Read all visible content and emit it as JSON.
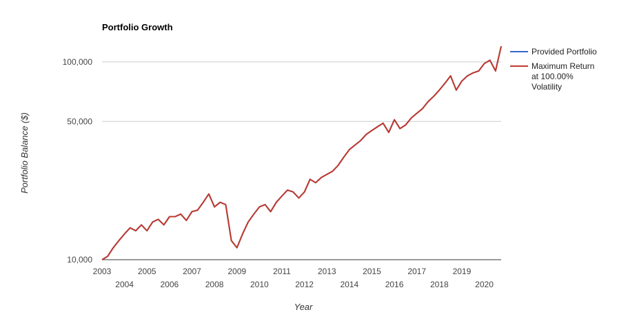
{
  "chart_data": {
    "type": "line",
    "title": "Portfolio Growth",
    "xlabel": "Year",
    "ylabel": "Portfolio Balance ($)",
    "yscale": "log",
    "ylim": [
      10000,
      125000
    ],
    "xlim": [
      2003.0,
      2020.75
    ],
    "y_ticks": [
      {
        "value": 10000,
        "label": "10,000"
      },
      {
        "value": 50000,
        "label": "50,000"
      },
      {
        "value": 100000,
        "label": "100,000"
      }
    ],
    "x_ticks": [
      {
        "value": 2003,
        "label": "2003"
      },
      {
        "value": 2004,
        "label": "2004"
      },
      {
        "value": 2005,
        "label": "2005"
      },
      {
        "value": 2006,
        "label": "2006"
      },
      {
        "value": 2007,
        "label": "2007"
      },
      {
        "value": 2008,
        "label": "2008"
      },
      {
        "value": 2009,
        "label": "2009"
      },
      {
        "value": 2010,
        "label": "2010"
      },
      {
        "value": 2011,
        "label": "2011"
      },
      {
        "value": 2012,
        "label": "2012"
      },
      {
        "value": 2013,
        "label": "2013"
      },
      {
        "value": 2014,
        "label": "2014"
      },
      {
        "value": 2015,
        "label": "2015"
      },
      {
        "value": 2016,
        "label": "2016"
      },
      {
        "value": 2017,
        "label": "2017"
      },
      {
        "value": 2018,
        "label": "2018"
      },
      {
        "value": 2019,
        "label": "2019"
      },
      {
        "value": 2020,
        "label": "2020"
      }
    ],
    "legend": {
      "position": "right",
      "entries": [
        {
          "name": "Provided Portfolio",
          "color": "#3366cc"
        },
        {
          "name": "Maximum Return at 100.00% Volatility",
          "lines": [
            "Maximum Return",
            "at 100.00%",
            "Volatility"
          ],
          "color": "#c0392b"
        }
      ]
    },
    "series": [
      {
        "name": "Provided Portfolio",
        "color": "#3366cc",
        "x": [
          2003.0,
          2003.25,
          2003.5,
          2003.75,
          2004.0,
          2004.25,
          2004.5,
          2004.75,
          2005.0,
          2005.25,
          2005.5,
          2005.75,
          2006.0,
          2006.25,
          2006.5,
          2006.75,
          2007.0,
          2007.25,
          2007.5,
          2007.75,
          2008.0,
          2008.25,
          2008.5,
          2008.75,
          2009.0,
          2009.25,
          2009.5,
          2009.75,
          2010.0,
          2010.25,
          2010.5,
          2010.75,
          2011.0,
          2011.25,
          2011.5,
          2011.75,
          2012.0,
          2012.25,
          2012.5,
          2012.75,
          2013.0,
          2013.25,
          2013.5,
          2013.75,
          2014.0,
          2014.25,
          2014.5,
          2014.75,
          2015.0,
          2015.25,
          2015.5,
          2015.75,
          2016.0,
          2016.25,
          2016.5,
          2016.75,
          2017.0,
          2017.25,
          2017.5,
          2017.75,
          2018.0,
          2018.25,
          2018.5,
          2018.75,
          2019.0,
          2019.25,
          2019.5,
          2019.75,
          2020.0,
          2020.25,
          2020.5,
          2020.75
        ],
        "values": [
          10000,
          10400,
          11500,
          12500,
          13500,
          14500,
          14000,
          15000,
          14000,
          15500,
          16000,
          15000,
          16500,
          16500,
          17000,
          15800,
          17500,
          17800,
          19500,
          21500,
          18500,
          19500,
          19000,
          12500,
          11500,
          13500,
          15500,
          17000,
          18500,
          19000,
          17500,
          19500,
          21000,
          22500,
          22000,
          20500,
          22000,
          25500,
          24500,
          26000,
          27000,
          28000,
          30000,
          33000,
          36000,
          38000,
          40000,
          43000,
          45000,
          47000,
          49000,
          44000,
          51000,
          46000,
          48000,
          52000,
          55000,
          58000,
          63000,
          67000,
          72000,
          78000,
          85000,
          72000,
          80000,
          85000,
          88000,
          90000,
          98000,
          102000,
          90000,
          120000
        ]
      },
      {
        "name": "Maximum Return at 100.00% Volatility",
        "color": "#c0392b",
        "x": [
          2003.0,
          2003.25,
          2003.5,
          2003.75,
          2004.0,
          2004.25,
          2004.5,
          2004.75,
          2005.0,
          2005.25,
          2005.5,
          2005.75,
          2006.0,
          2006.25,
          2006.5,
          2006.75,
          2007.0,
          2007.25,
          2007.5,
          2007.75,
          2008.0,
          2008.25,
          2008.5,
          2008.75,
          2009.0,
          2009.25,
          2009.5,
          2009.75,
          2010.0,
          2010.25,
          2010.5,
          2010.75,
          2011.0,
          2011.25,
          2011.5,
          2011.75,
          2012.0,
          2012.25,
          2012.5,
          2012.75,
          2013.0,
          2013.25,
          2013.5,
          2013.75,
          2014.0,
          2014.25,
          2014.5,
          2014.75,
          2015.0,
          2015.25,
          2015.5,
          2015.75,
          2016.0,
          2016.25,
          2016.5,
          2016.75,
          2017.0,
          2017.25,
          2017.5,
          2017.75,
          2018.0,
          2018.25,
          2018.5,
          2018.75,
          2019.0,
          2019.25,
          2019.5,
          2019.75,
          2020.0,
          2020.25,
          2020.5,
          2020.75
        ],
        "values": [
          10000,
          10400,
          11500,
          12500,
          13500,
          14500,
          14000,
          15000,
          14000,
          15500,
          16000,
          15000,
          16500,
          16500,
          17000,
          15800,
          17500,
          17800,
          19500,
          21500,
          18500,
          19500,
          19000,
          12500,
          11500,
          13500,
          15500,
          17000,
          18500,
          19000,
          17500,
          19500,
          21000,
          22500,
          22000,
          20500,
          22000,
          25500,
          24500,
          26000,
          27000,
          28000,
          30000,
          33000,
          36000,
          38000,
          40000,
          43000,
          45000,
          47000,
          49000,
          44000,
          51000,
          46000,
          48000,
          52000,
          55000,
          58000,
          63000,
          67000,
          72000,
          78000,
          85000,
          72000,
          80000,
          85000,
          88000,
          90000,
          98000,
          102000,
          90000,
          120000
        ]
      }
    ]
  }
}
